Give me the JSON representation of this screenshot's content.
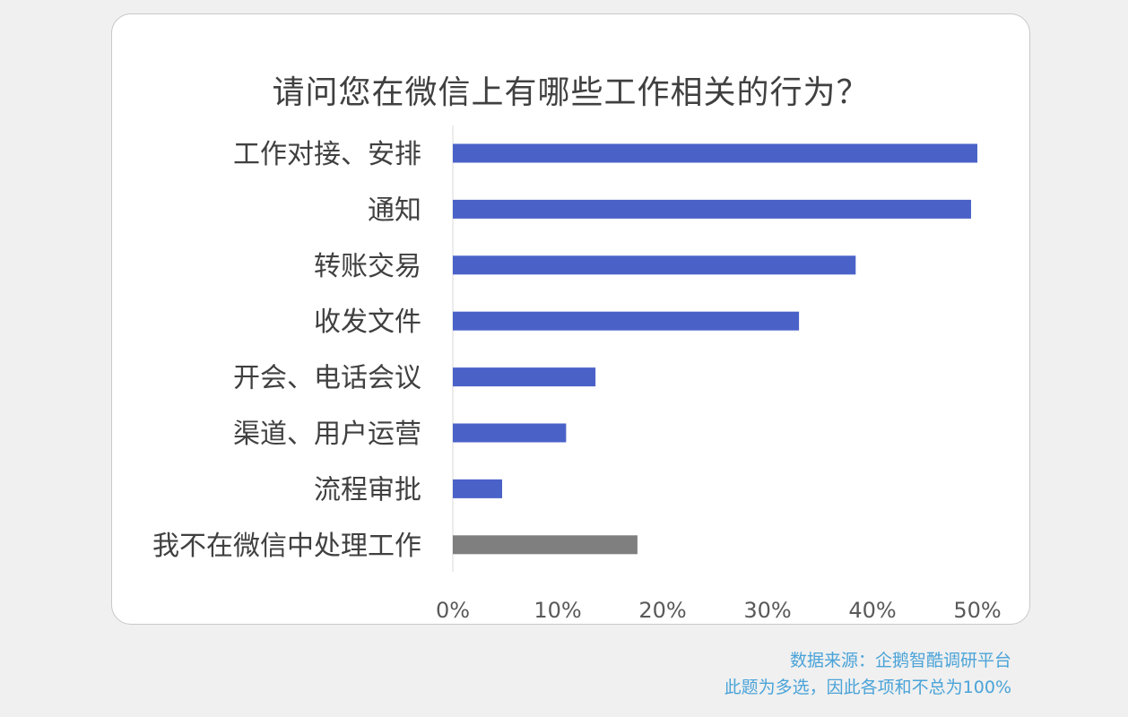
{
  "chart_data": {
    "type": "bar",
    "orientation": "horizontal",
    "title": "请问您在微信上有哪些工作相关的行为？",
    "categories": [
      "工作对接、安排",
      "通知",
      "转账交易",
      "收发文件",
      "开会、电话会议",
      "渠道、用户运营",
      "流程审批",
      "我不在微信中处理工作"
    ],
    "values": [
      50,
      49.4,
      38.4,
      33,
      13.6,
      10.8,
      4.7,
      17.6
    ],
    "xlim": [
      0,
      50
    ],
    "xticks": [
      "0%",
      "10%",
      "20%",
      "30%",
      "40%",
      "50%"
    ],
    "xtick_values": [
      0,
      10,
      20,
      30,
      40,
      50
    ],
    "bar_colors": [
      "#4a62c8",
      "#4a62c8",
      "#4a62c8",
      "#4a62c8",
      "#4a62c8",
      "#4a62c8",
      "#4a62c8",
      "#7f7f7f"
    ],
    "grid": false,
    "legend": "none"
  },
  "footer": {
    "source": "数据来源：企鹅智酷调研平台",
    "note": "此题为多选，因此各项和不总为100%"
  },
  "colors": {
    "bar": "#4a62c8",
    "bar_other": "#7f7f7f",
    "axis": "#d9d9d9",
    "label": "#404040",
    "tick": "#595959",
    "footer": "#4aa3d8"
  }
}
